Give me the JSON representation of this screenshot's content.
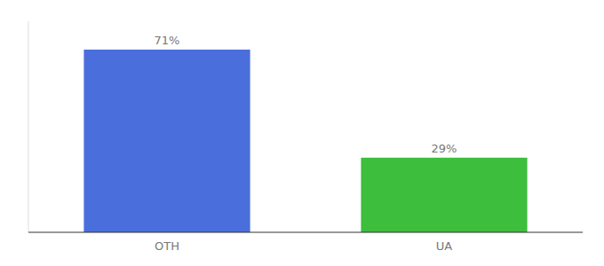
{
  "chart_data": {
    "type": "bar",
    "categories": [
      "OTH",
      "UA"
    ],
    "values": [
      71,
      29
    ],
    "colors": [
      "#4a6fdc",
      "#3dbe3d"
    ],
    "value_labels": [
      "71%",
      "29%"
    ],
    "data_labels": true,
    "ylim": [
      0,
      82
    ],
    "yticks": [],
    "tick_labels": "x",
    "grid": false
  }
}
